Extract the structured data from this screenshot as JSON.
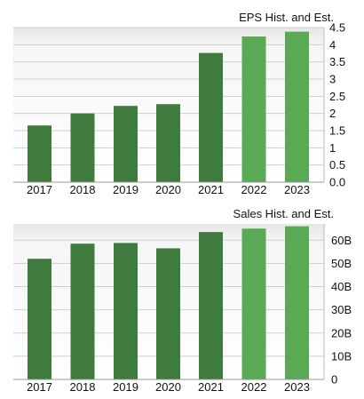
{
  "chart_data": [
    {
      "type": "bar",
      "title": "EPS Hist. and Est.",
      "categories": [
        "2017",
        "2018",
        "2019",
        "2020",
        "2021",
        "2022",
        "2023"
      ],
      "values": [
        1.65,
        2.0,
        2.22,
        2.27,
        3.76,
        4.24,
        4.38
      ],
      "estimate_flags": [
        false,
        false,
        false,
        false,
        false,
        true,
        true
      ],
      "ylim": [
        0,
        4.5
      ],
      "yticks": [
        0,
        0.5,
        1,
        1.5,
        2,
        2.5,
        3,
        3.5,
        4,
        4.5
      ],
      "ytick_labels": [
        "0.0",
        "0.5",
        "1",
        "1.5",
        "2",
        "2.5",
        "3",
        "3.5",
        "4",
        "4.5"
      ],
      "grid": true,
      "colors": {
        "historical": "#3e7b3d",
        "estimate": "#5aaa55"
      }
    },
    {
      "type": "bar",
      "title": "Sales Hist. and Est.",
      "categories": [
        "2017",
        "2018",
        "2019",
        "2020",
        "2021",
        "2022",
        "2023"
      ],
      "values": [
        52000000000,
        58500000000,
        58800000000,
        56500000000,
        63500000000,
        65000000000,
        66000000000
      ],
      "estimate_flags": [
        false,
        false,
        false,
        false,
        false,
        true,
        true
      ],
      "ylim": [
        0,
        67000000000
      ],
      "yticks": [
        0,
        10000000000,
        20000000000,
        30000000000,
        40000000000,
        50000000000,
        60000000000
      ],
      "ytick_labels": [
        "0",
        "10B",
        "20B",
        "30B",
        "40B",
        "50B",
        "60B"
      ],
      "grid": true,
      "colors": {
        "historical": "#3e7b3d",
        "estimate": "#5aaa55"
      }
    }
  ]
}
